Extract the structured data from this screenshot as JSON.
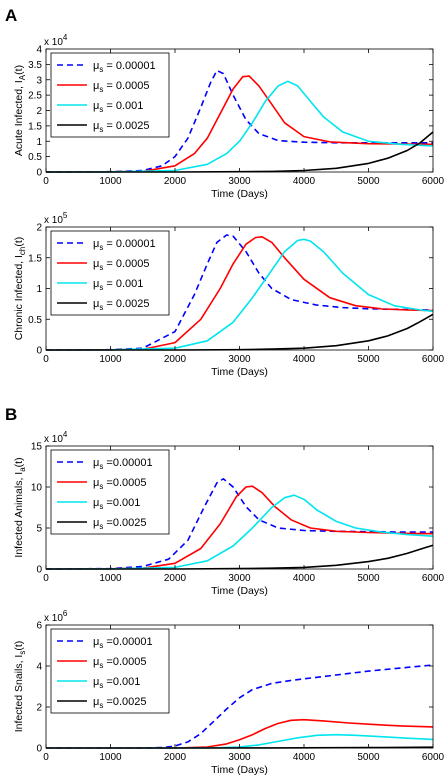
{
  "panels": [
    {
      "label": "A"
    },
    {
      "label": "B"
    }
  ],
  "chart_data": [
    {
      "type": "line",
      "xlabel": "Time (Days)",
      "ylabel": "Acute Infected, I",
      "ylabel_sub": "A",
      "ylabel_suffix": "(t)",
      "xlim": [
        0,
        6000
      ],
      "ylim": [
        0,
        4
      ],
      "y_multiplier": "x 10",
      "y_exponent": "4",
      "xticks": [
        0,
        1000,
        2000,
        3000,
        4000,
        5000,
        6000
      ],
      "yticks": [
        0,
        0.5,
        1,
        1.5,
        2,
        2.5,
        3,
        3.5,
        4
      ],
      "grid": false,
      "legend_placement": "top-left",
      "series": [
        {
          "name": "μs = 0.00001",
          "legend_main": "μ",
          "legend_sub": "s",
          "legend_value": " = 0.00001",
          "color": "#0000ff",
          "dashed": true,
          "x": [
            0,
            1000,
            1500,
            1800,
            2000,
            2200,
            2400,
            2550,
            2650,
            2750,
            2900,
            3100,
            3300,
            3600,
            4000,
            4500,
            5000,
            5500,
            6000
          ],
          "y": [
            0,
            0.01,
            0.05,
            0.2,
            0.5,
            1.1,
            2.1,
            2.9,
            3.3,
            3.2,
            2.5,
            1.7,
            1.25,
            1.02,
            0.97,
            0.95,
            0.95,
            0.95,
            0.95
          ]
        },
        {
          "name": "μs = 0.0005",
          "legend_main": "μ",
          "legend_sub": "s",
          "legend_value": " = 0.0005",
          "color": "#ff0000",
          "dashed": false,
          "x": [
            0,
            1000,
            1500,
            2000,
            2300,
            2500,
            2700,
            2900,
            3050,
            3150,
            3300,
            3500,
            3700,
            4000,
            4400,
            5000,
            5500,
            6000
          ],
          "y": [
            0,
            0.005,
            0.02,
            0.2,
            0.6,
            1.1,
            1.9,
            2.7,
            3.1,
            3.12,
            2.8,
            2.2,
            1.6,
            1.15,
            0.98,
            0.92,
            0.91,
            0.9
          ]
        },
        {
          "name": "μs = 0.001",
          "legend_main": "μ",
          "legend_sub": "s",
          "legend_value": " = 0.001",
          "color": "#00e5ee",
          "dashed": false,
          "x": [
            0,
            1000,
            2000,
            2500,
            2800,
            3000,
            3200,
            3400,
            3600,
            3750,
            3900,
            4100,
            4300,
            4600,
            5000,
            5500,
            6000
          ],
          "y": [
            0,
            0.002,
            0.05,
            0.25,
            0.6,
            1.0,
            1.6,
            2.3,
            2.8,
            2.95,
            2.8,
            2.3,
            1.8,
            1.3,
            1.0,
            0.9,
            0.85
          ]
        },
        {
          "name": "μs = 0.0025",
          "legend_main": "μ",
          "legend_sub": "s",
          "legend_value": " = 0.0025",
          "color": "#000000",
          "dashed": false,
          "x": [
            0,
            2000,
            3000,
            3500,
            4000,
            4500,
            5000,
            5300,
            5600,
            5800,
            6000
          ],
          "y": [
            0,
            0,
            0.01,
            0.02,
            0.05,
            0.12,
            0.28,
            0.45,
            0.7,
            0.95,
            1.3
          ]
        }
      ]
    },
    {
      "type": "line",
      "xlabel": "Time (Days)",
      "ylabel": "Chronic Infected, I",
      "ylabel_sub": "ch",
      "ylabel_suffix": "(t)",
      "xlim": [
        0,
        6000
      ],
      "ylim": [
        0,
        2
      ],
      "y_multiplier": "x 10",
      "y_exponent": "5",
      "xticks": [
        0,
        1000,
        2000,
        3000,
        4000,
        5000,
        6000
      ],
      "yticks": [
        0,
        0.5,
        1,
        1.5,
        2
      ],
      "grid": false,
      "legend_placement": "top-left",
      "series": [
        {
          "name": "μs = 0.00001",
          "legend_main": "μ",
          "legend_sub": "s",
          "legend_value": " = 0.00001",
          "color": "#0000ff",
          "dashed": true,
          "x": [
            0,
            1000,
            1500,
            2000,
            2300,
            2500,
            2650,
            2800,
            2900,
            3100,
            3300,
            3500,
            3800,
            4200,
            4600,
            5000,
            5500,
            6000
          ],
          "y": [
            0,
            0.005,
            0.03,
            0.3,
            0.9,
            1.4,
            1.75,
            1.87,
            1.85,
            1.6,
            1.25,
            1.0,
            0.82,
            0.73,
            0.69,
            0.67,
            0.66,
            0.65
          ]
        },
        {
          "name": "μs = 0.0005",
          "legend_main": "μ",
          "legend_sub": "s",
          "legend_value": " = 0.0005",
          "color": "#ff0000",
          "dashed": false,
          "x": [
            0,
            1000,
            1500,
            2000,
            2400,
            2700,
            2900,
            3100,
            3250,
            3350,
            3500,
            3700,
            4000,
            4400,
            4800,
            5200,
            5600,
            6000
          ],
          "y": [
            0,
            0.003,
            0.01,
            0.12,
            0.5,
            1.0,
            1.4,
            1.72,
            1.83,
            1.84,
            1.75,
            1.5,
            1.15,
            0.85,
            0.72,
            0.67,
            0.65,
            0.64
          ]
        },
        {
          "name": "μs = 0.001",
          "legend_main": "μ",
          "legend_sub": "s",
          "legend_value": " = 0.001",
          "color": "#00e5ee",
          "dashed": false,
          "x": [
            0,
            1000,
            2000,
            2500,
            2900,
            3200,
            3500,
            3700,
            3900,
            4000,
            4100,
            4300,
            4600,
            5000,
            5400,
            5800,
            6000
          ],
          "y": [
            0,
            0.002,
            0.03,
            0.15,
            0.45,
            0.85,
            1.3,
            1.6,
            1.78,
            1.8,
            1.77,
            1.6,
            1.25,
            0.9,
            0.72,
            0.65,
            0.63
          ]
        },
        {
          "name": "μs = 0.0025",
          "legend_main": "μ",
          "legend_sub": "s",
          "legend_value": " = 0.0025",
          "color": "#000000",
          "dashed": false,
          "x": [
            0,
            2000,
            3000,
            3500,
            4000,
            4500,
            5000,
            5300,
            5600,
            5800,
            6000
          ],
          "y": [
            0,
            0,
            0.005,
            0.015,
            0.03,
            0.07,
            0.15,
            0.23,
            0.35,
            0.46,
            0.58
          ]
        }
      ]
    },
    {
      "type": "line",
      "xlabel": "Time (Days)",
      "ylabel": "Infected Animals, I",
      "ylabel_sub": "a",
      "ylabel_suffix": "(t)",
      "xlim": [
        0,
        6000
      ],
      "ylim": [
        0,
        15
      ],
      "y_multiplier": "x 10",
      "y_exponent": "4",
      "xticks": [
        0,
        1000,
        2000,
        3000,
        4000,
        5000,
        6000
      ],
      "yticks": [
        0,
        5,
        10,
        15
      ],
      "grid": false,
      "legend_placement": "top-left",
      "series": [
        {
          "name": "μs =0.00001",
          "legend_main": "μ",
          "legend_sub": "s",
          "legend_value": " =0.00001",
          "color": "#0000ff",
          "dashed": true,
          "x": [
            0,
            1000,
            1500,
            1900,
            2200,
            2450,
            2650,
            2750,
            2900,
            3100,
            3300,
            3600,
            4000,
            4500,
            5000,
            5500,
            6000
          ],
          "y": [
            0,
            0.05,
            0.3,
            1.2,
            3.5,
            7.5,
            10.5,
            11.0,
            10.0,
            7.6,
            6.0,
            5.0,
            4.7,
            4.6,
            4.55,
            4.5,
            4.5
          ]
        },
        {
          "name": "μs =0.0005",
          "legend_main": "μ",
          "legend_sub": "s",
          "legend_value": " =0.0005",
          "color": "#ff0000",
          "dashed": false,
          "x": [
            0,
            1000,
            1500,
            2000,
            2400,
            2700,
            2950,
            3100,
            3200,
            3350,
            3550,
            3800,
            4100,
            4500,
            5000,
            5500,
            6000
          ],
          "y": [
            0,
            0.02,
            0.1,
            0.7,
            2.5,
            5.5,
            8.8,
            10.0,
            10.1,
            9.3,
            7.6,
            6.0,
            5.0,
            4.6,
            4.45,
            4.35,
            4.3
          ]
        },
        {
          "name": "μs =0.001",
          "legend_main": "μ",
          "legend_sub": "s",
          "legend_value": " =0.001",
          "color": "#00e5ee",
          "dashed": false,
          "x": [
            0,
            1000,
            2000,
            2500,
            2900,
            3200,
            3500,
            3700,
            3850,
            4000,
            4200,
            4500,
            4800,
            5200,
            5600,
            6000
          ],
          "y": [
            0,
            0.01,
            0.2,
            1.0,
            2.8,
            5.0,
            7.5,
            8.7,
            9.0,
            8.5,
            7.2,
            5.8,
            5.0,
            4.5,
            4.2,
            4.0
          ]
        },
        {
          "name": "μs =0.0025",
          "legend_main": "μ",
          "legend_sub": "s",
          "legend_value": " =0.0025",
          "color": "#000000",
          "dashed": false,
          "x": [
            0,
            2000,
            3000,
            3500,
            4000,
            4500,
            5000,
            5300,
            5600,
            5800,
            6000
          ],
          "y": [
            0,
            0,
            0.05,
            0.1,
            0.2,
            0.45,
            0.9,
            1.3,
            1.9,
            2.4,
            2.9
          ]
        }
      ]
    },
    {
      "type": "line",
      "xlabel": "Time (Days)",
      "ylabel": "Infected Snails, I",
      "ylabel_sub": "s",
      "ylabel_suffix": "(t)",
      "xlim": [
        0,
        6000
      ],
      "ylim": [
        0,
        6
      ],
      "y_multiplier": "x 10",
      "y_exponent": "6",
      "xticks": [
        0,
        1000,
        2000,
        3000,
        4000,
        5000,
        6000
      ],
      "yticks": [
        0,
        2,
        4,
        6
      ],
      "grid": false,
      "legend_placement": "top-left",
      "series": [
        {
          "name": "μs =0.00001",
          "legend_main": "μ",
          "legend_sub": "s",
          "legend_value": " =0.00001",
          "color": "#0000ff",
          "dashed": true,
          "x": [
            0,
            1500,
            1800,
            2000,
            2200,
            2400,
            2600,
            2800,
            3000,
            3200,
            3500,
            3800,
            4200,
            4600,
            5000,
            5500,
            6000
          ],
          "y": [
            0,
            0,
            0.02,
            0.1,
            0.3,
            0.7,
            1.3,
            1.9,
            2.45,
            2.85,
            3.15,
            3.3,
            3.45,
            3.6,
            3.75,
            3.9,
            4.05
          ]
        },
        {
          "name": "μs =0.0005",
          "legend_main": "μ",
          "legend_sub": "s",
          "legend_value": " =0.0005",
          "color": "#ff0000",
          "dashed": false,
          "x": [
            0,
            2000,
            2500,
            2800,
            3000,
            3200,
            3400,
            3600,
            3800,
            4000,
            4300,
            4700,
            5100,
            5500,
            6000
          ],
          "y": [
            0,
            0,
            0.05,
            0.2,
            0.4,
            0.65,
            0.95,
            1.2,
            1.35,
            1.38,
            1.32,
            1.22,
            1.14,
            1.08,
            1.03
          ]
        },
        {
          "name": "μs =0.001",
          "legend_main": "μ",
          "legend_sub": "s",
          "legend_value": " =0.001",
          "color": "#00e5ee",
          "dashed": false,
          "x": [
            0,
            2500,
            3000,
            3300,
            3600,
            3900,
            4200,
            4500,
            4800,
            5200,
            5600,
            6000
          ],
          "y": [
            0,
            0,
            0.05,
            0.15,
            0.32,
            0.5,
            0.62,
            0.65,
            0.62,
            0.55,
            0.48,
            0.42
          ]
        },
        {
          "name": "μs =0.0025",
          "legend_main": "μ",
          "legend_sub": "s",
          "legend_value": " =0.0025",
          "color": "#000000",
          "dashed": false,
          "x": [
            0,
            2500,
            3500,
            4000,
            4500,
            5000,
            5500,
            6000
          ],
          "y": [
            0,
            0,
            0.005,
            0.01,
            0.015,
            0.02,
            0.03,
            0.04
          ]
        }
      ]
    }
  ]
}
